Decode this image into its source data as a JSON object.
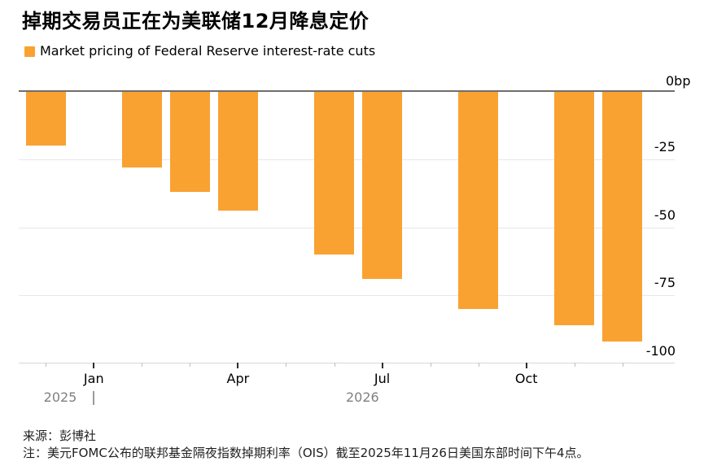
{
  "header": {
    "title": "掉期交易员正在为美联储12月降息定价",
    "legend_label": "Market pricing of Federal Reserve interest-rate cuts"
  },
  "colors": {
    "bar_orange": "#F9A232",
    "zero_line": "#6E6E6E",
    "gridline": "#E7E7E7",
    "axis_line": "#D8D8D8",
    "year_text": "#808080"
  },
  "chart_data": {
    "type": "bar",
    "unit": "bp",
    "ylim": [
      -100,
      0
    ],
    "grid": "horizontal",
    "legend_position": "top-left",
    "y_ticks": [
      {
        "label": "0bp",
        "value": 0
      },
      {
        "label": "-25",
        "value": -25
      },
      {
        "label": "-50",
        "value": -50
      },
      {
        "label": "-75",
        "value": -75
      },
      {
        "label": "-100",
        "value": -100
      }
    ],
    "x_ticks": [
      {
        "slot": 0,
        "label": ""
      },
      {
        "slot": 1,
        "label": "Jan"
      },
      {
        "slot": 2,
        "label": ""
      },
      {
        "slot": 3,
        "label": ""
      },
      {
        "slot": 4,
        "label": "Apr"
      },
      {
        "slot": 5,
        "label": ""
      },
      {
        "slot": 6,
        "label": ""
      },
      {
        "slot": 7,
        "label": "Jul"
      },
      {
        "slot": 8,
        "label": ""
      },
      {
        "slot": 9,
        "label": ""
      },
      {
        "slot": 10,
        "label": "Oct"
      },
      {
        "slot": 11,
        "label": ""
      },
      {
        "slot": 12,
        "label": ""
      }
    ],
    "year_labels": [
      {
        "text": "2025"
      },
      {
        "text": "2026"
      }
    ],
    "series": [
      {
        "name": "Market pricing of Federal Reserve interest-rate cuts",
        "color": "#F9A232",
        "bars": [
          {
            "slot": 0,
            "value": -20
          },
          {
            "slot": 2,
            "value": -28
          },
          {
            "slot": 3,
            "value": -37
          },
          {
            "slot": 4,
            "value": -44
          },
          {
            "slot": 6,
            "value": -60
          },
          {
            "slot": 7,
            "value": -69
          },
          {
            "slot": 9,
            "value": -80
          },
          {
            "slot": 11,
            "value": -86
          },
          {
            "slot": 12,
            "value": -92
          }
        ]
      }
    ]
  },
  "footer": {
    "source": "来源：彭博社",
    "note": "注：美元FOMC公布的联邦基金隔夜指数掉期利率（OIS）截至2025年11月26日美国东部时间下午4点。"
  }
}
